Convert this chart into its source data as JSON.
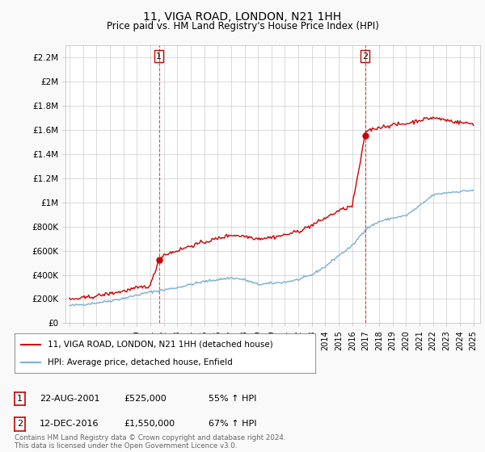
{
  "title1": "11, VIGA ROAD, LONDON, N21 1HH",
  "title2": "Price paid vs. HM Land Registry's House Price Index (HPI)",
  "ylabel_ticks": [
    "£0",
    "£200K",
    "£400K",
    "£600K",
    "£800K",
    "£1M",
    "£1.2M",
    "£1.4M",
    "£1.6M",
    "£1.8M",
    "£2M",
    "£2.2M"
  ],
  "ylabel_values": [
    0,
    200000,
    400000,
    600000,
    800000,
    1000000,
    1200000,
    1400000,
    1600000,
    1800000,
    2000000,
    2200000
  ],
  "ylim": [
    0,
    2300000
  ],
  "xlim_start": 1994.7,
  "xlim_end": 2025.5,
  "sale1_x": 2001.64,
  "sale1_y": 525000,
  "sale1_label": "1",
  "sale2_x": 2016.95,
  "sale2_y": 1550000,
  "sale2_label": "2",
  "sale_color": "#cc0000",
  "hpi_color": "#7bafd4",
  "legend_line1": "11, VIGA ROAD, LONDON, N21 1HH (detached house)",
  "legend_line2": "HPI: Average price, detached house, Enfield",
  "table_row1": [
    "1",
    "22-AUG-2001",
    "£525,000",
    "55% ↑ HPI"
  ],
  "table_row2": [
    "2",
    "12-DEC-2016",
    "£1,550,000",
    "67% ↑ HPI"
  ],
  "footnote": "Contains HM Land Registry data © Crown copyright and database right 2024.\nThis data is licensed under the Open Government Licence v3.0.",
  "background_color": "#f9f9f9",
  "plot_bg_color": "#ffffff",
  "grid_color": "#cccccc"
}
